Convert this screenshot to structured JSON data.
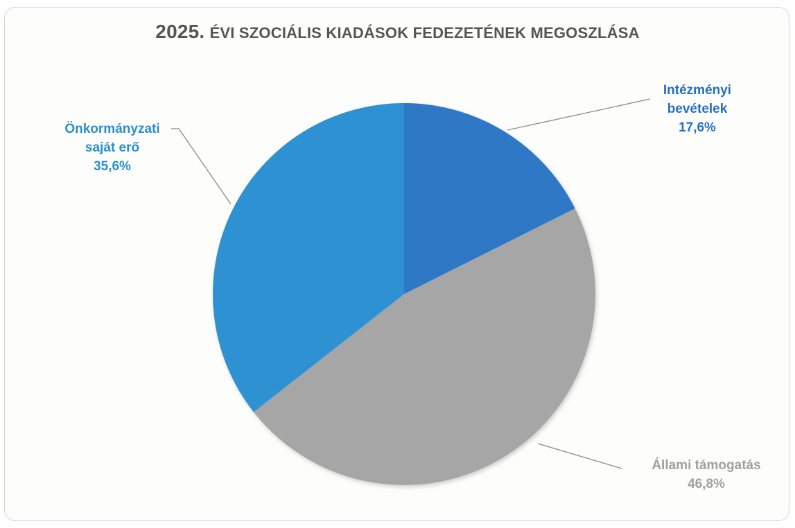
{
  "chart_data": {
    "type": "pie",
    "title_year": "2025.",
    "title_rest": "ÉVI SZOCIÁLIS KIADÁSOK FEDEZETÉNEK MEGOSZLÁSA",
    "slices": [
      {
        "label_lines": [
          "Intézményi",
          "bevételek"
        ],
        "value": 17.6,
        "value_label": "17,6%",
        "color": "#2f78c6",
        "label_color": "#2670c0"
      },
      {
        "label_lines": [
          "Állami támogatás"
        ],
        "value": 46.8,
        "value_label": "46,8%",
        "color": "#a6a6a6",
        "label_color": "#a0a0a0"
      },
      {
        "label_lines": [
          "Önkormányzati",
          "saját erő"
        ],
        "value": 35.6,
        "value_label": "35,6%",
        "color": "#2e92d2",
        "label_color": "#2a8fce"
      }
    ],
    "leader_line_color": "#8a8a8a",
    "legend": "none"
  }
}
